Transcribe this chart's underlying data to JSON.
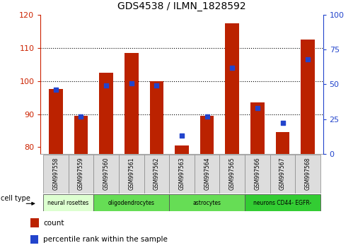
{
  "title": "GDS4538 / ILMN_1828592",
  "samples": [
    "GSM997558",
    "GSM997559",
    "GSM997560",
    "GSM997561",
    "GSM997562",
    "GSM997563",
    "GSM997564",
    "GSM997565",
    "GSM997566",
    "GSM997567",
    "GSM997568"
  ],
  "count_values": [
    97.5,
    89.5,
    102.5,
    108.5,
    100.0,
    80.5,
    89.5,
    117.5,
    93.5,
    84.5,
    112.5
  ],
  "percentile_values": [
    46,
    27,
    49,
    51,
    49,
    13,
    27,
    62,
    33,
    22,
    68
  ],
  "ylim_left": [
    78,
    120
  ],
  "ylim_right": [
    0,
    100
  ],
  "yticks_left": [
    80,
    90,
    100,
    110,
    120
  ],
  "yticks_right": [
    0,
    25,
    50,
    75,
    100
  ],
  "bar_color": "#bb2200",
  "dot_color": "#2244cc",
  "cell_groups": [
    {
      "label": "neural rosettes",
      "indices": [
        0,
        1
      ],
      "color": "#ddffd0"
    },
    {
      "label": "oligodendrocytes",
      "indices": [
        2,
        3,
        4
      ],
      "color": "#66dd55"
    },
    {
      "label": "astrocytes",
      "indices": [
        5,
        6,
        7
      ],
      "color": "#66dd55"
    },
    {
      "label": "neurons CD44- EGFR-",
      "indices": [
        8,
        9,
        10
      ],
      "color": "#33cc33"
    }
  ],
  "cell_type_label": "cell type",
  "legend_count": "count",
  "legend_percentile": "percentile rank within the sample",
  "tick_color_left": "#cc2200",
  "tick_color_right": "#2244cc",
  "xticklabel_bg": "#dddddd",
  "gridline_values": [
    90,
    100,
    110
  ]
}
